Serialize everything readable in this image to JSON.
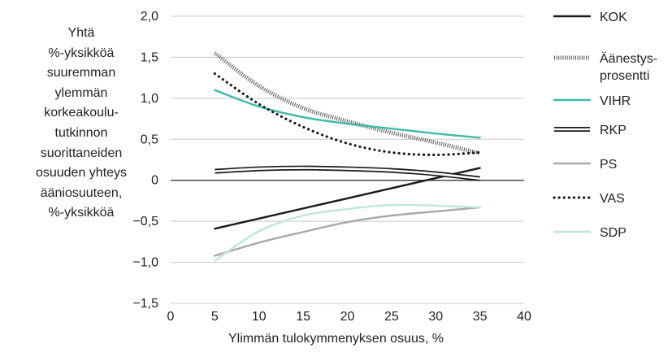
{
  "chart_data": {
    "type": "line",
    "xlabel": "Ylimmän tulokymmenyksen osuus, %",
    "ylabel_lines": [
      "Yhtä",
      "%-yksikköä",
      "suuremman",
      "ylemmän",
      "korkeakoulu-",
      "tutkinnon",
      "suorittaneiden",
      "osuuden yhteys",
      "ääniosuuteen,",
      "%-yksikköä"
    ],
    "xlim": [
      0,
      40
    ],
    "ylim": [
      -1.5,
      2.0
    ],
    "x_ticks": [
      "0",
      "5",
      "10",
      "15",
      "20",
      "25",
      "30",
      "35",
      "40"
    ],
    "y_ticks": [
      "2,0",
      "1,5",
      "1,0",
      "0,5",
      "0",
      "−0,5",
      "−1,0",
      "−1,5"
    ],
    "grid": true,
    "legend_position": "right",
    "x": [
      5,
      10,
      15,
      20,
      25,
      30,
      35
    ],
    "series": [
      {
        "name": "KOK",
        "style": "solid",
        "color": "#1a1a1a",
        "values": [
          -0.59,
          -0.4,
          -0.22,
          -0.06,
          0.1,
          0.0,
          0.15
        ]
      },
      {
        "name": "Äänestys-prosentti",
        "legend_lines": [
          "Äänestys-",
          "prosentti"
        ],
        "style": "hatched",
        "color": "#555555",
        "values": [
          1.55,
          1.15,
          0.88,
          0.72,
          0.58,
          0.46,
          0.33
        ]
      },
      {
        "name": "VIHR",
        "style": "solid",
        "color": "#3fbaa6",
        "values": [
          1.1,
          0.9,
          0.77,
          0.69,
          0.63,
          0.57,
          0.52
        ]
      },
      {
        "name": "RKP",
        "style": "double",
        "color": "#1a1a1a",
        "values": [
          0.11,
          0.14,
          0.15,
          0.14,
          0.12,
          0.08,
          0.02
        ]
      },
      {
        "name": "PS",
        "style": "solid",
        "color": "#a8a8a8",
        "values": [
          -0.92,
          -0.76,
          -0.63,
          -0.51,
          -0.43,
          -0.38,
          -0.33
        ]
      },
      {
        "name": "VAS",
        "style": "dotted",
        "color": "#1a1a1a",
        "values": [
          1.3,
          0.93,
          0.65,
          0.45,
          0.34,
          0.31,
          0.34
        ]
      },
      {
        "name": "SDP",
        "style": "solid",
        "color": "#bfe6de",
        "values": [
          -0.98,
          -0.62,
          -0.43,
          -0.35,
          -0.3,
          -0.31,
          -0.33
        ]
      }
    ]
  }
}
